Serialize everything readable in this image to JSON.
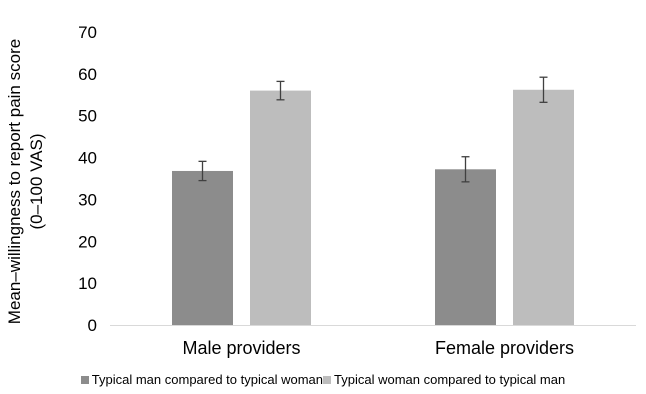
{
  "chart_data": {
    "type": "bar",
    "title": "",
    "xlabel": "",
    "ylabel_lines": [
      "Mean–willingness to report pain score",
      "(0–100 VAS)"
    ],
    "categories": [
      "Male providers",
      "Female providers"
    ],
    "ylim": [
      0,
      70
    ],
    "yticks": [
      0,
      10,
      20,
      30,
      40,
      50,
      60,
      70
    ],
    "grid": false,
    "legend_position": "bottom",
    "series": [
      {
        "name": "Typical man compared to typical woman",
        "color": "#8c8c8c",
        "values": [
          36.8,
          37.2
        ],
        "error": [
          2.3,
          3.0
        ]
      },
      {
        "name": "Typical woman compared to typical man",
        "color": "#bdbdbd",
        "values": [
          56.0,
          56.2
        ],
        "error": [
          2.2,
          3.0
        ]
      }
    ]
  }
}
